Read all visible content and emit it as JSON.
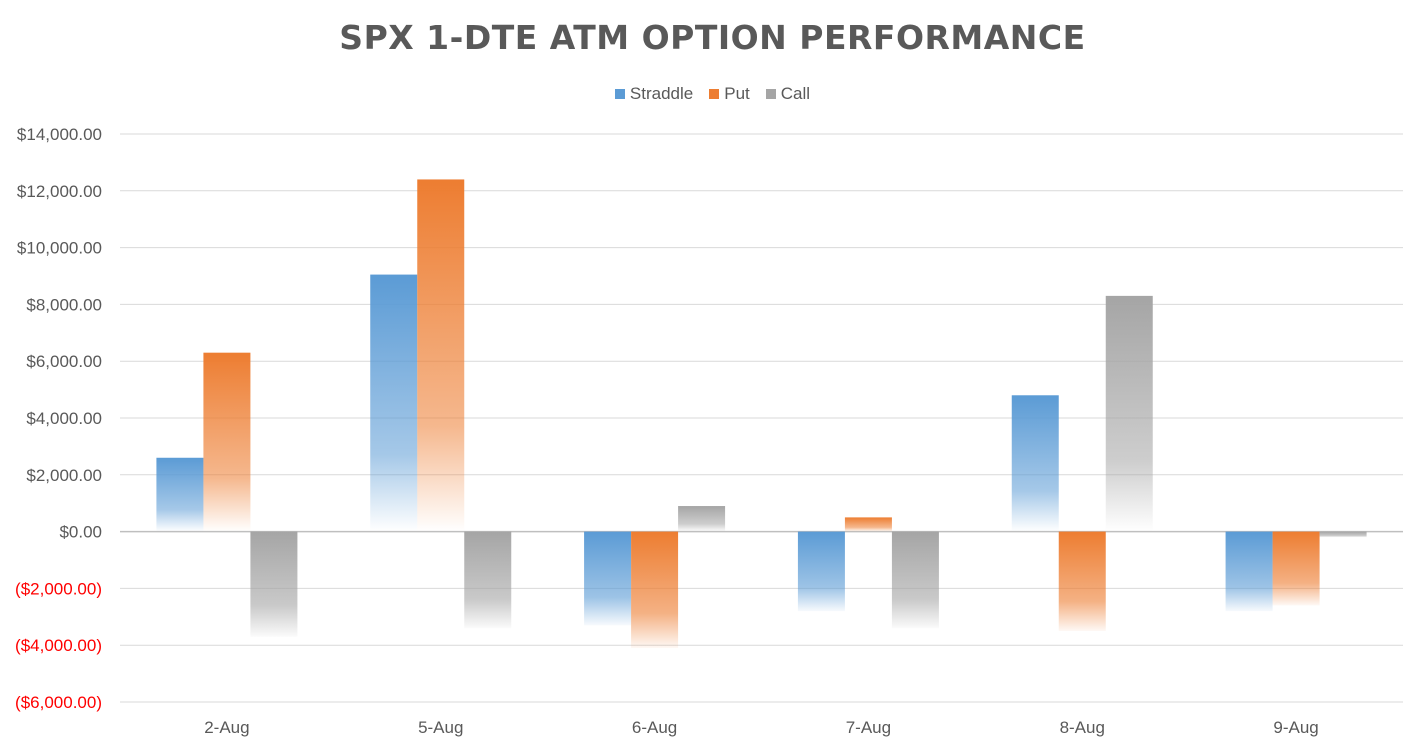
{
  "chart_data": {
    "type": "bar",
    "title": "SPX 1-DTE ATM OPTION PERFORMANCE",
    "xlabel": "",
    "ylabel": "",
    "categories": [
      "2-Aug",
      "5-Aug",
      "6-Aug",
      "7-Aug",
      "8-Aug",
      "9-Aug"
    ],
    "series": [
      {
        "name": "Straddle",
        "color": "#5b9bd5",
        "values": [
          2600,
          9050,
          -3300,
          -2800,
          4800,
          -2800
        ]
      },
      {
        "name": "Put",
        "color": "#ed7d31",
        "values": [
          6300,
          12400,
          -4100,
          500,
          -3500,
          -2600
        ]
      },
      {
        "name": "Call",
        "color": "#a5a5a5",
        "values": [
          -3700,
          -3400,
          900,
          -3400,
          8300,
          -200
        ]
      }
    ],
    "ylim": [
      -6000,
      14000
    ],
    "yticks": [
      14000,
      12000,
      10000,
      8000,
      6000,
      4000,
      2000,
      0,
      -2000,
      -4000,
      -6000
    ],
    "ytick_labels": [
      "$14,000.00",
      "$12,000.00",
      "$10,000.00",
      "$8,000.00",
      "$6,000.00",
      "$4,000.00",
      "$2,000.00",
      "$0.00",
      "($2,000.00)",
      "($4,000.00)",
      "($6,000.00)"
    ],
    "negative_label_color": "#ff0000",
    "grid": true,
    "legend_position": "top-center"
  }
}
